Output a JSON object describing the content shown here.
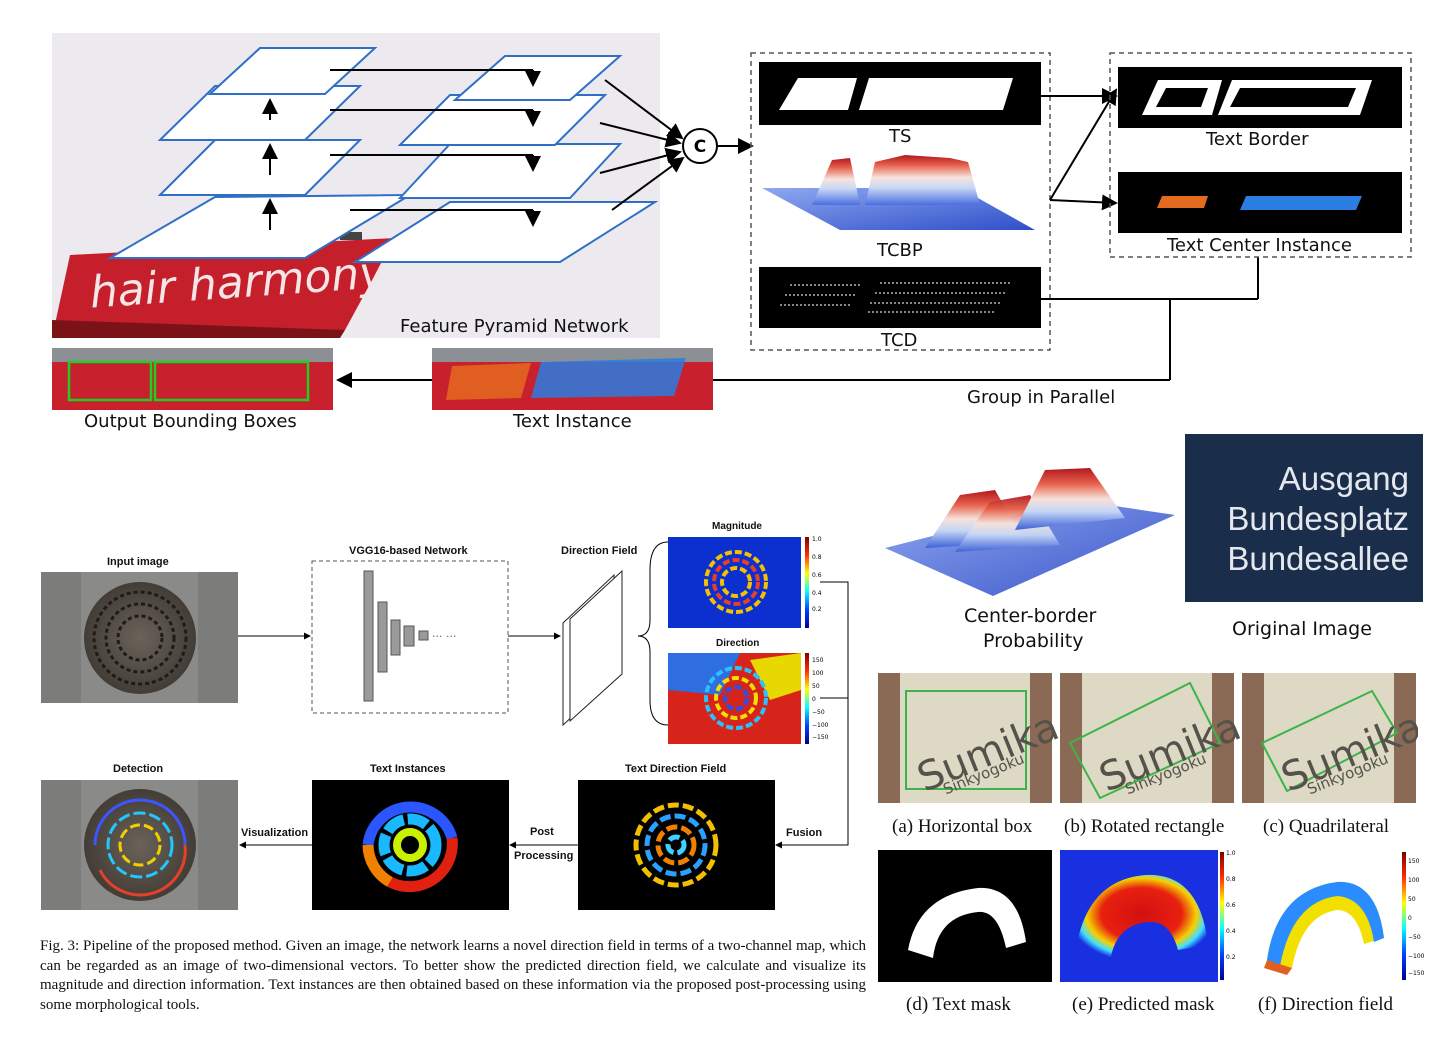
{
  "top_pipeline": {
    "fpn_label": "Feature Pyramid Network",
    "concat_symbol": "C",
    "sign_text": "hair harmony",
    "ts_label": "TS",
    "tcbp_label": "TCBP",
    "tcd_label": "TCD",
    "text_border_label": "Text Border",
    "text_center_instance_label": "Text Center Instance",
    "group_label": "Group in Parallel",
    "text_instance_label": "Text Instance",
    "output_label": "Output Bounding Boxes"
  },
  "top_right": {
    "center_border_label_line1": "Center-border",
    "center_border_label_line2": "Probability",
    "original_label": "Original Image",
    "sign_lines": [
      "Ausgang",
      "Bundesplatz",
      "Bundesallee"
    ]
  },
  "mid_pipeline": {
    "input_label": "Input image",
    "network_label": "VGG16-based Network",
    "direction_field_label": "Direction Field",
    "magnitude_label": "Magnitude",
    "direction_label": "Direction",
    "magnitude_ticks": [
      "1.0",
      "0.8",
      "0.6",
      "0.4",
      "0.2"
    ],
    "direction_ticks": [
      "150",
      "100",
      "50",
      "0",
      "−50",
      "−100",
      "−150"
    ],
    "detection_label": "Detection",
    "text_instances_label": "Text Instances",
    "tdf_label": "Text Direction Field",
    "visualization_label": "Visualization",
    "post_label_1": "Post",
    "post_label_2": "Processing",
    "fusion_label": "Fusion",
    "ellipsis": "··· ···"
  },
  "sumika": {
    "word": "Sumika",
    "sub": "Sinkyogoku",
    "a_label": "(a) Horizontal box",
    "b_label": "(b) Rotated rectangle",
    "c_label": "(c) Quadrilateral"
  },
  "masks": {
    "d_label": "(d) Text mask",
    "e_label": "(e) Predicted mask",
    "f_label": "(f) Direction field",
    "e_ticks": [
      "1.0",
      "0.8",
      "0.6",
      "0.4",
      "0.2"
    ],
    "f_ticks": [
      "150",
      "100",
      "50",
      "0",
      "−50",
      "−100",
      "−150"
    ]
  },
  "caption": "Fig. 3: Pipeline of the proposed method. Given an image, the network learns a novel direction field in terms of a two-channel map, which can be regarded as an image of two-dimensional vectors. To better show the predicted direction field, we calculate and visualize its magnitude and direction information. Text instances are then obtained based on these information via the proposed post-processing using some morphological tools.",
  "colors": {
    "fpn_blue": "#2f6fc6",
    "sign_red": "#c8202c",
    "box_green": "#22cc22",
    "instance_orange": "#e36a1f",
    "instance_blue": "#2a7de1"
  }
}
